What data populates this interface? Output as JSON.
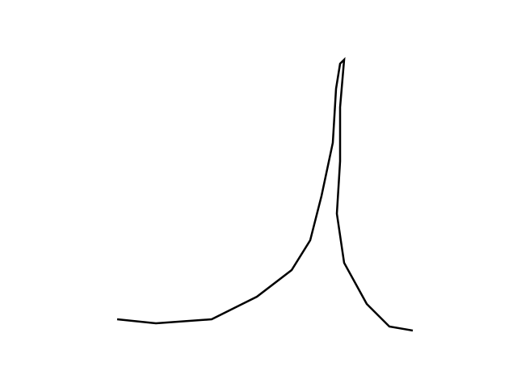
{
  "figure": {
    "background_color": "#ffffff",
    "stroke_color": "#000000",
    "shape": "open-polyline",
    "description_visible_text": ""
  }
}
